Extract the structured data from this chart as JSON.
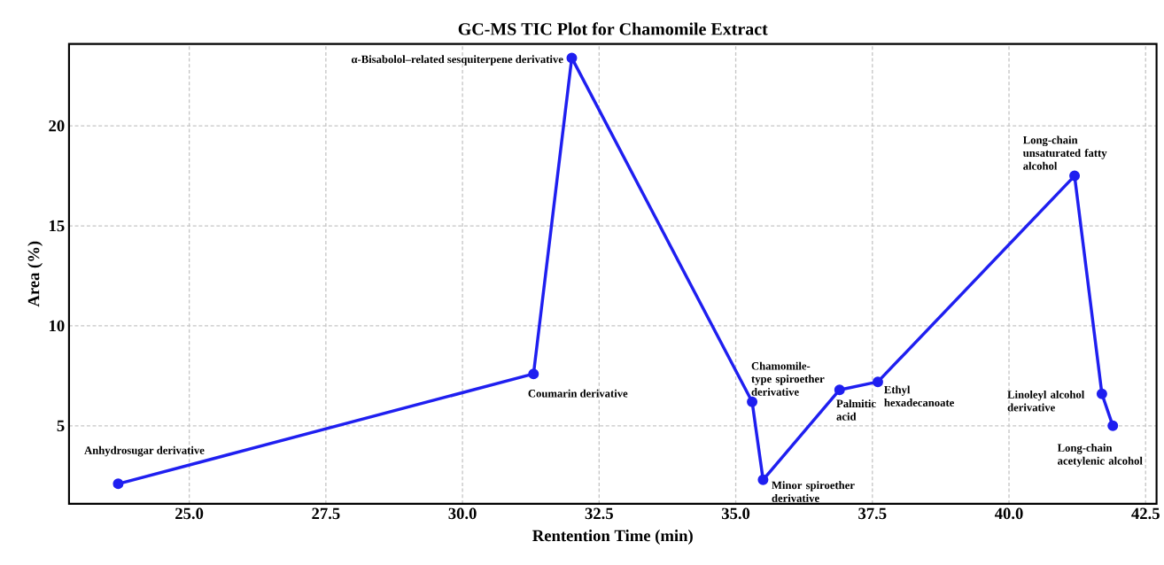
{
  "chart_data": {
    "type": "line",
    "title": "GC-MS TIC Plot for Chamomile Extract",
    "xlabel": "Rentention Time (min)",
    "ylabel": "Area (%)",
    "x": [
      23.7,
      31.3,
      32.0,
      35.3,
      35.5,
      36.9,
      37.6,
      41.2,
      41.7,
      41.9
    ],
    "series": [
      {
        "color": "#1f1ff0",
        "values": [
          2.1,
          7.6,
          23.4,
          6.2,
          2.3,
          6.8,
          7.2,
          17.5,
          6.6,
          5.0
        ]
      }
    ],
    "xlim": [
      22.8,
      42.7
    ],
    "ylim": [
      1.1,
      24.1
    ],
    "xticks": [
      {
        "value": 25,
        "label": "25.0"
      },
      {
        "value": 27.5,
        "label": "27.5"
      },
      {
        "value": 30,
        "label": "30.0"
      },
      {
        "value": 32.5,
        "label": "32.5"
      },
      {
        "value": 35,
        "label": "35.0"
      },
      {
        "value": 37.5,
        "label": "37.5"
      },
      {
        "value": 40,
        "label": "40.0"
      },
      {
        "value": 42.5,
        "label": "42.5"
      }
    ],
    "yticks": [
      5,
      10,
      15,
      20
    ],
    "grid": true,
    "marker": "circle",
    "line_style": "solid",
    "annotations": [
      {
        "text": "Anhydrosugar derivative",
        "x": 23.7,
        "y": 2.1
      },
      {
        "text": "Coumarin derivative",
        "x": 31.3,
        "y": 7.6
      },
      {
        "text": "α-Bisabolol–related sesquiterpene derivative",
        "x": 32.0,
        "y": 23.4
      },
      {
        "text": "Chamomile-type spiroether derivative",
        "x": 35.3,
        "y": 6.2
      },
      {
        "text": "Minor spiroether derivative",
        "x": 35.5,
        "y": 2.3
      },
      {
        "text": "Palmitic acid",
        "x": 36.9,
        "y": 6.8
      },
      {
        "text": "Ethyl hexadecanoate",
        "x": 37.6,
        "y": 7.2
      },
      {
        "text": "Long-chain unsaturated fatty alcohol",
        "x": 41.2,
        "y": 17.5
      },
      {
        "text": "Linoleyl alcohol derivative",
        "x": 41.7,
        "y": 6.6
      },
      {
        "text": "Long-chain acetylenic alcohol",
        "x": 41.9,
        "y": 5.0
      }
    ]
  }
}
